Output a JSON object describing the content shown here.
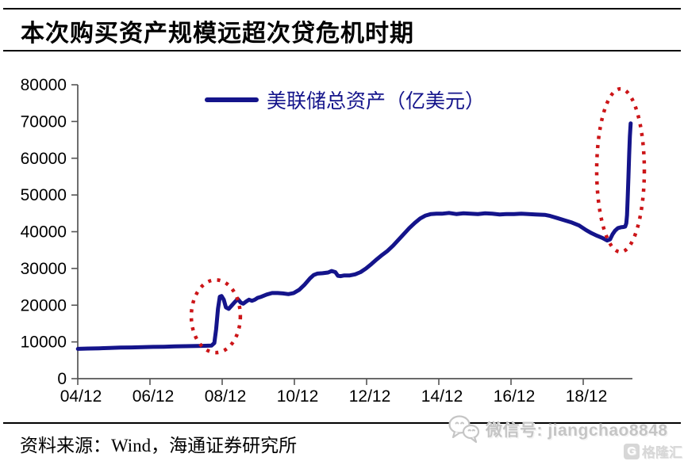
{
  "title": "本次购买资产规模远超次贷危机时期",
  "legend": {
    "label": "美联储总资产（亿美元）"
  },
  "source": {
    "label": "资料来源：Wind，海通证券研究所"
  },
  "watermark": {
    "wechat_label": "微信号: jiangchao8848",
    "logo_letter": "G",
    "logo_text": "格隆汇"
  },
  "colors": {
    "line": "#14148b",
    "highlight": "#cc1518",
    "axis": "#555555",
    "text": "#000000",
    "watermark_gray": "#c5c5c5",
    "logo_gray": "#d7d7d7"
  },
  "chart_data": {
    "type": "line",
    "title": "本次购买资产规模远超次贷危机时期",
    "xlabel": "",
    "ylabel": "亿美元",
    "grid": false,
    "legend_position": "top-center",
    "ylim": [
      0,
      80000
    ],
    "xlim": [
      2004.9167,
      2020.28
    ],
    "y_ticks": [
      0,
      10000,
      20000,
      30000,
      40000,
      50000,
      60000,
      70000,
      80000
    ],
    "x_ticks": [
      {
        "year": 2004.9167,
        "label": "04/12"
      },
      {
        "year": 2006.9167,
        "label": "06/12"
      },
      {
        "year": 2008.9167,
        "label": "08/12"
      },
      {
        "year": 2010.9167,
        "label": "10/12"
      },
      {
        "year": 2012.9167,
        "label": "12/12"
      },
      {
        "year": 2014.9167,
        "label": "14/12"
      },
      {
        "year": 2016.9167,
        "label": "16/12"
      },
      {
        "year": 2018.9167,
        "label": "18/12"
      }
    ],
    "series": [
      {
        "name": "美联储总资产（亿美元）",
        "color": "#14148b",
        "points": [
          [
            2004.92,
            8100
          ],
          [
            2005.2,
            8200
          ],
          [
            2005.5,
            8250
          ],
          [
            2005.8,
            8350
          ],
          [
            2006.1,
            8450
          ],
          [
            2006.4,
            8500
          ],
          [
            2006.7,
            8550
          ],
          [
            2007.0,
            8650
          ],
          [
            2007.3,
            8700
          ],
          [
            2007.6,
            8800
          ],
          [
            2007.9,
            8850
          ],
          [
            2008.2,
            8900
          ],
          [
            2008.45,
            8950
          ],
          [
            2008.62,
            9000
          ],
          [
            2008.7,
            9700
          ],
          [
            2008.75,
            13500
          ],
          [
            2008.8,
            19000
          ],
          [
            2008.85,
            22300
          ],
          [
            2008.9,
            22500
          ],
          [
            2008.96,
            21500
          ],
          [
            2009.02,
            19400
          ],
          [
            2009.1,
            19000
          ],
          [
            2009.18,
            19900
          ],
          [
            2009.27,
            20900
          ],
          [
            2009.35,
            21700
          ],
          [
            2009.43,
            20700
          ],
          [
            2009.5,
            20400
          ],
          [
            2009.58,
            21000
          ],
          [
            2009.66,
            21500
          ],
          [
            2009.74,
            21200
          ],
          [
            2009.82,
            21500
          ],
          [
            2009.9,
            22000
          ],
          [
            2010.0,
            22300
          ],
          [
            2010.15,
            22900
          ],
          [
            2010.3,
            23300
          ],
          [
            2010.45,
            23300
          ],
          [
            2010.6,
            23200
          ],
          [
            2010.75,
            23000
          ],
          [
            2010.9,
            23300
          ],
          [
            2011.05,
            24200
          ],
          [
            2011.2,
            25600
          ],
          [
            2011.35,
            27300
          ],
          [
            2011.45,
            28200
          ],
          [
            2011.55,
            28600
          ],
          [
            2011.7,
            28700
          ],
          [
            2011.85,
            28900
          ],
          [
            2011.95,
            29300
          ],
          [
            2012.05,
            29000
          ],
          [
            2012.12,
            28000
          ],
          [
            2012.2,
            27900
          ],
          [
            2012.3,
            28100
          ],
          [
            2012.45,
            28100
          ],
          [
            2012.6,
            28400
          ],
          [
            2012.75,
            29000
          ],
          [
            2012.9,
            30000
          ],
          [
            2013.05,
            31200
          ],
          [
            2013.2,
            32500
          ],
          [
            2013.35,
            33700
          ],
          [
            2013.5,
            34800
          ],
          [
            2013.65,
            36200
          ],
          [
            2013.8,
            37800
          ],
          [
            2013.95,
            39400
          ],
          [
            2014.1,
            41000
          ],
          [
            2014.25,
            42400
          ],
          [
            2014.4,
            43600
          ],
          [
            2014.55,
            44400
          ],
          [
            2014.7,
            44800
          ],
          [
            2014.85,
            44900
          ],
          [
            2015.0,
            44900
          ],
          [
            2015.2,
            45100
          ],
          [
            2015.4,
            44800
          ],
          [
            2015.6,
            45000
          ],
          [
            2015.8,
            44900
          ],
          [
            2016.0,
            44800
          ],
          [
            2016.2,
            45000
          ],
          [
            2016.4,
            44900
          ],
          [
            2016.6,
            44700
          ],
          [
            2016.8,
            44800
          ],
          [
            2017.0,
            44800
          ],
          [
            2017.2,
            44900
          ],
          [
            2017.4,
            44800
          ],
          [
            2017.6,
            44700
          ],
          [
            2017.85,
            44600
          ],
          [
            2018.0,
            44300
          ],
          [
            2018.2,
            43700
          ],
          [
            2018.4,
            43100
          ],
          [
            2018.6,
            42500
          ],
          [
            2018.8,
            41700
          ],
          [
            2019.0,
            40400
          ],
          [
            2019.15,
            39600
          ],
          [
            2019.3,
            38900
          ],
          [
            2019.45,
            38300
          ],
          [
            2019.58,
            37600
          ],
          [
            2019.66,
            37900
          ],
          [
            2019.73,
            39300
          ],
          [
            2019.8,
            40300
          ],
          [
            2019.88,
            41000
          ],
          [
            2019.96,
            41200
          ],
          [
            2020.04,
            41300
          ],
          [
            2020.08,
            41400
          ],
          [
            2020.11,
            42300
          ],
          [
            2020.13,
            44500
          ],
          [
            2020.15,
            49500
          ],
          [
            2020.17,
            55000
          ],
          [
            2020.19,
            61000
          ],
          [
            2020.21,
            66000
          ],
          [
            2020.23,
            69500
          ]
        ]
      }
    ],
    "annotations": [
      {
        "type": "ellipse",
        "cx_year": 2008.74,
        "cy_value": 17000,
        "rx_years": 0.68,
        "ry_value": 9900,
        "color": "#cc1518",
        "style": "dotted"
      },
      {
        "type": "ellipse",
        "cx_year": 2019.95,
        "cy_value": 56700,
        "rx_years": 0.66,
        "ry_value": 22200,
        "color": "#cc1518",
        "style": "dotted"
      }
    ]
  }
}
